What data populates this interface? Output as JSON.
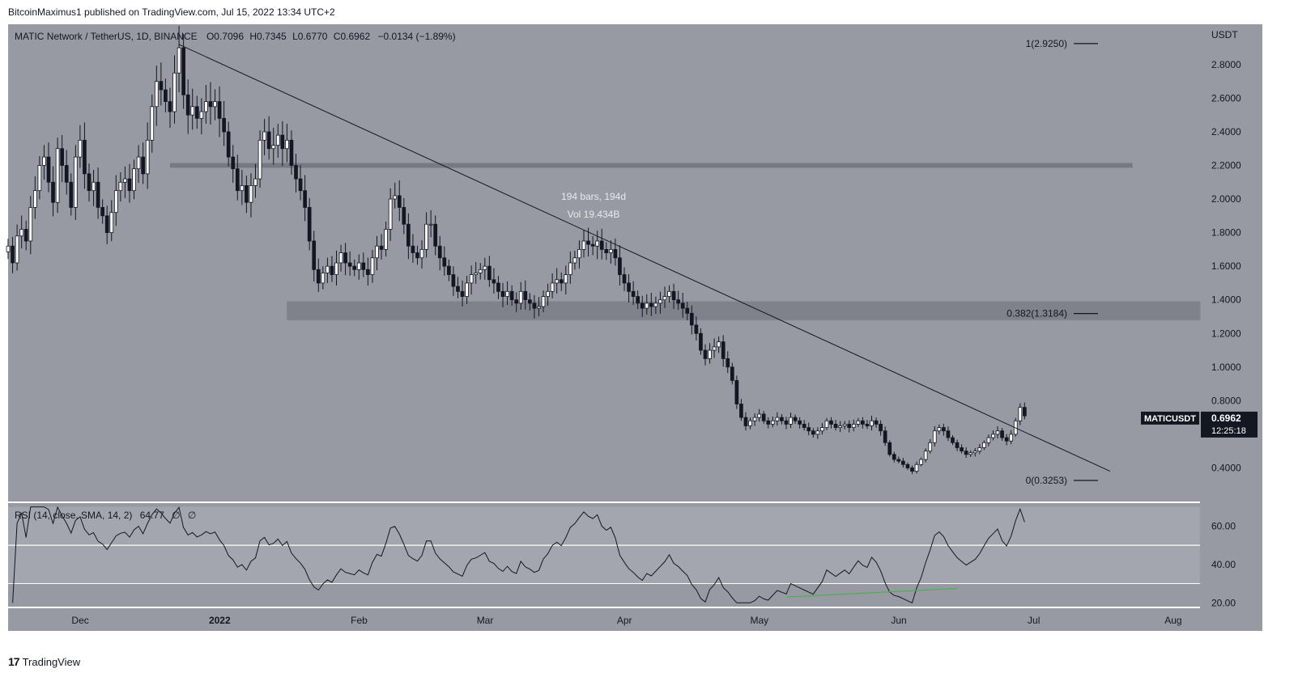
{
  "header": {
    "published_line": "BitcoinMaximus1 published on TradingView.com, Jul 15, 2022 13:34 UTC+2"
  },
  "footer": {
    "brand": "TradingView",
    "brand_mark": "17"
  },
  "colors": {
    "price_bg": "#979aa3",
    "rsi_bg": "#979aa3",
    "rsi_band": "#a3a6ae",
    "zone_fill": "#5d6069",
    "axis_bg": "#979aa3",
    "up_candle": "#ffffff",
    "down_candle": "#131722",
    "rsi_line": "#131722",
    "divergence_line": "#4caf50",
    "price_tag_bg": "#131722"
  },
  "chart_data": [
    {
      "type": "candlestick",
      "legend": {
        "symbol": "MATIC Network / TetherUS, 1D, BINANCE",
        "o_label": "O",
        "o": "0.7096",
        "h_label": "H",
        "h": "0.7345",
        "l_label": "L",
        "l": "0.6770",
        "c_label": "C",
        "c": "0.6962",
        "change": "−0.0134 (−1.89%)"
      },
      "y_axis_label": "USDT",
      "ylim": [
        0.2,
        3.04
      ],
      "yticks": [
        "2.8000",
        "2.6000",
        "2.4000",
        "2.2000",
        "2.0000",
        "1.8000",
        "1.6000",
        "1.4000",
        "1.2000",
        "1.0000",
        "0.8000",
        "0.4000"
      ],
      "ytick_values": [
        2.8,
        2.6,
        2.4,
        2.2,
        2.0,
        1.8,
        1.6,
        1.4,
        1.2,
        1.0,
        0.8,
        0.4
      ],
      "x_labels": [
        "Dec",
        "2022",
        "Feb",
        "Mar",
        "Apr",
        "May",
        "Jun",
        "Jul",
        "Aug"
      ],
      "x_label_dates": [
        "2021-12-01",
        "2022-01-01",
        "2022-02-01",
        "2022-03-01",
        "2022-04-01",
        "2022-05-01",
        "2022-06-01",
        "2022-07-01",
        "2022-08-01"
      ],
      "x_start": "2021-11-20",
      "x_end": "2022-08-12",
      "closes": [
        1.72,
        1.62,
        1.78,
        1.82,
        1.75,
        1.95,
        2.05,
        2.2,
        2.25,
        2.1,
        1.98,
        2.3,
        2.2,
        2.1,
        1.95,
        2.25,
        2.35,
        2.15,
        2.05,
        2.1,
        1.95,
        1.9,
        1.8,
        1.92,
        2.05,
        2.1,
        2.12,
        2.05,
        2.18,
        2.25,
        2.15,
        2.35,
        2.55,
        2.7,
        2.65,
        2.58,
        2.52,
        2.75,
        2.9,
        2.62,
        2.5,
        2.55,
        2.48,
        2.52,
        2.58,
        2.55,
        2.58,
        2.48,
        2.4,
        2.25,
        2.18,
        2.05,
        2.08,
        1.98,
        2.08,
        2.12,
        2.35,
        2.4,
        2.3,
        2.32,
        2.38,
        2.3,
        2.35,
        2.2,
        2.12,
        2.05,
        1.95,
        1.75,
        1.58,
        1.5,
        1.56,
        1.6,
        1.55,
        1.62,
        1.68,
        1.62,
        1.6,
        1.58,
        1.62,
        1.58,
        1.55,
        1.65,
        1.72,
        1.7,
        1.82,
        2.0,
        2.02,
        1.95,
        1.85,
        1.72,
        1.68,
        1.65,
        1.7,
        1.85,
        1.85,
        1.72,
        1.65,
        1.6,
        1.55,
        1.48,
        1.45,
        1.42,
        1.5,
        1.55,
        1.56,
        1.58,
        1.6,
        1.52,
        1.5,
        1.45,
        1.42,
        1.45,
        1.4,
        1.38,
        1.45,
        1.4,
        1.38,
        1.35,
        1.36,
        1.42,
        1.45,
        1.5,
        1.52,
        1.5,
        1.55,
        1.62,
        1.65,
        1.7,
        1.75,
        1.73,
        1.72,
        1.75,
        1.7,
        1.68,
        1.7,
        1.65,
        1.55,
        1.5,
        1.45,
        1.42,
        1.38,
        1.35,
        1.38,
        1.36,
        1.38,
        1.4,
        1.42,
        1.45,
        1.4,
        1.38,
        1.35,
        1.32,
        1.25,
        1.2,
        1.1,
        1.05,
        1.1,
        1.12,
        1.15,
        1.05,
        1.0,
        0.92,
        0.78,
        0.7,
        0.65,
        0.68,
        0.7,
        0.72,
        0.68,
        0.66,
        0.68,
        0.7,
        0.68,
        0.66,
        0.7,
        0.68,
        0.66,
        0.64,
        0.62,
        0.6,
        0.62,
        0.64,
        0.68,
        0.66,
        0.64,
        0.65,
        0.66,
        0.64,
        0.66,
        0.68,
        0.66,
        0.65,
        0.68,
        0.66,
        0.62,
        0.55,
        0.48,
        0.45,
        0.44,
        0.42,
        0.4,
        0.38,
        0.42,
        0.45,
        0.5,
        0.55,
        0.62,
        0.64,
        0.62,
        0.58,
        0.55,
        0.52,
        0.5,
        0.48,
        0.49,
        0.5,
        0.52,
        0.55,
        0.58,
        0.6,
        0.62,
        0.58,
        0.56,
        0.6,
        0.68,
        0.76,
        0.7096
      ],
      "price_tag": {
        "symbol": "MATICUSDT",
        "price": "0.6962",
        "countdown": "12:25:18",
        "value": 0.6962
      },
      "annotations": {
        "measure": {
          "bars": "194 bars, 194d",
          "vol": "Vol 19.434B"
        },
        "fib_1": {
          "label": "1(2.9250)",
          "value": 2.925
        },
        "fib_0382": {
          "label": "0.382(1.3184)",
          "value": 1.3184
        },
        "fib_0": {
          "label": "0(0.3253)",
          "value": 0.3253
        },
        "resistance_line_value": 2.2,
        "support_zone": [
          1.28,
          1.39
        ],
        "trendline": {
          "start": [
            "2021-12-28",
            2.92
          ],
          "end": [
            "2022-07-23",
            0.38
          ]
        }
      }
    },
    {
      "type": "line",
      "legend": {
        "label": "RSI (14, close, SMA, 14, 2)",
        "value": "64.77",
        "extra1": "∅",
        "extra2": "∅"
      },
      "ylim": [
        18,
        72
      ],
      "yticks": [
        "60.00",
        "40.00",
        "20.00"
      ],
      "ytick_values": [
        60,
        40,
        20
      ],
      "band": [
        30,
        70
      ],
      "midline": 50,
      "divergence": {
        "start": [
          "2022-05-12",
          23
        ],
        "end": [
          "2022-06-19",
          27.5
        ]
      }
    }
  ]
}
